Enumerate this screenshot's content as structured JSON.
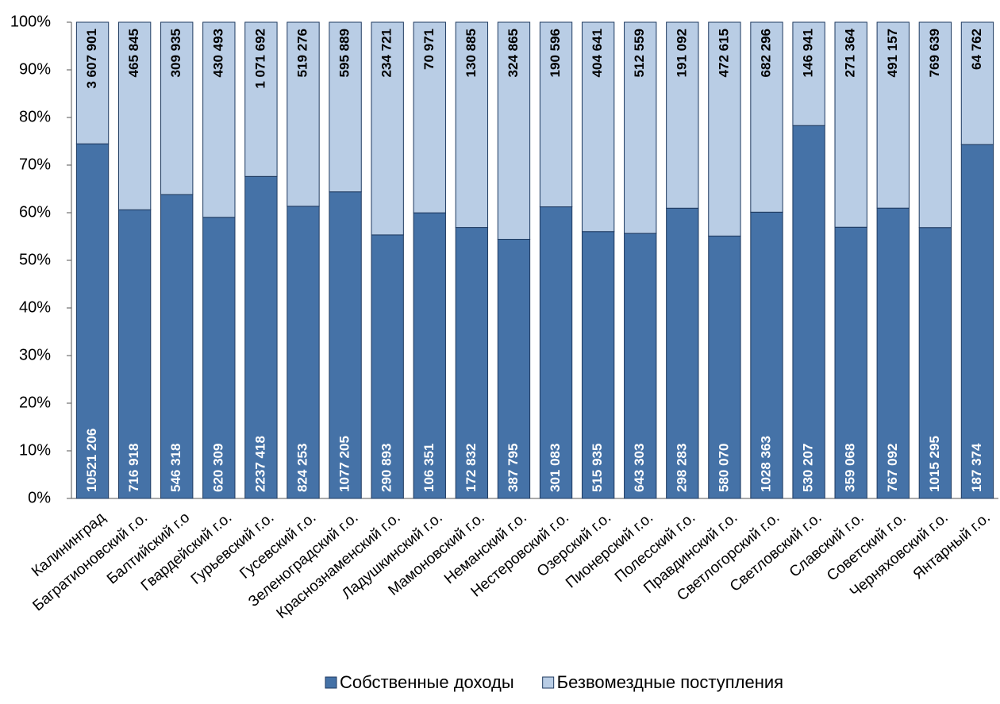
{
  "chart_data": {
    "type": "bar",
    "stacked": "percent",
    "categories": [
      "Калининград",
      "Багратионовский г.о.",
      "Балтийский г.о",
      "Гвардейский г.о.",
      "Гурьевский г.о.",
      "Гусевский г.о.",
      "Зеленоградский г.о.",
      "Краснознаменский г.о.",
      "Ладушкинский г.о.",
      "Мамоновский г.о.",
      "Неманский г.о.",
      "Нестеровский г.о.",
      "Озерский г.о.",
      "Пионерский г.о.",
      "Полесский г.о.",
      "Правдинский г.о.",
      "Светлогорский г.о.",
      "Светловский г.о.",
      "Славский г.о.",
      "Советский г.о.",
      "Черняховский г.о.",
      "Янтарный г.о."
    ],
    "series": [
      {
        "name": "Собственные доходы",
        "color": "#4572a7",
        "values": [
          10521206,
          716918,
          546318,
          620309,
          2237418,
          824253,
          1077205,
          290893,
          106351,
          172832,
          387795,
          301083,
          515935,
          643303,
          298283,
          580070,
          1028363,
          530207,
          359068,
          767092,
          1015295,
          187374
        ],
        "value_labels": [
          "10521 206",
          "716 918",
          "546 318",
          "620 309",
          "2237 418",
          "824 253",
          "1077 205",
          "290 893",
          "106 351",
          "172 832",
          "387 795",
          "301 083",
          "515 935",
          "643 303",
          "298 283",
          "580 070",
          "1028 363",
          "530 207",
          "359 068",
          "767 092",
          "1015 295",
          "187 374"
        ]
      },
      {
        "name": "Безвомездные поступления",
        "color": "#b9cde5",
        "values": [
          3607901,
          465845,
          309935,
          430493,
          1071692,
          519276,
          595889,
          234721,
          70971,
          130885,
          324865,
          190596,
          404641,
          512559,
          191092,
          472615,
          682296,
          146941,
          271364,
          491157,
          769639,
          64762
        ],
        "value_labels": [
          "3 607 901",
          "465 845",
          "309 935",
          "430 493",
          "1 071 692",
          "519 276",
          "595 889",
          "234 721",
          "70 971",
          "130 885",
          "324 865",
          "190 596",
          "404 641",
          "512 559",
          "191 092",
          "472 615",
          "682 296",
          "146 941",
          "271 364",
          "491 157",
          "769 639",
          "64 762"
        ]
      }
    ],
    "ylim": [
      0,
      100
    ],
    "yticks": [
      {
        "value": 0,
        "label": "0%"
      },
      {
        "value": 10,
        "label": "10%"
      },
      {
        "value": 20,
        "label": "20%"
      },
      {
        "value": 30,
        "label": "30%"
      },
      {
        "value": 40,
        "label": "40%"
      },
      {
        "value": 50,
        "label": "50%"
      },
      {
        "value": 60,
        "label": "60%"
      },
      {
        "value": 70,
        "label": "70%"
      },
      {
        "value": 80,
        "label": "80%"
      },
      {
        "value": 90,
        "label": "90%"
      },
      {
        "value": 100,
        "label": "100%"
      }
    ],
    "legend": "bottom"
  }
}
